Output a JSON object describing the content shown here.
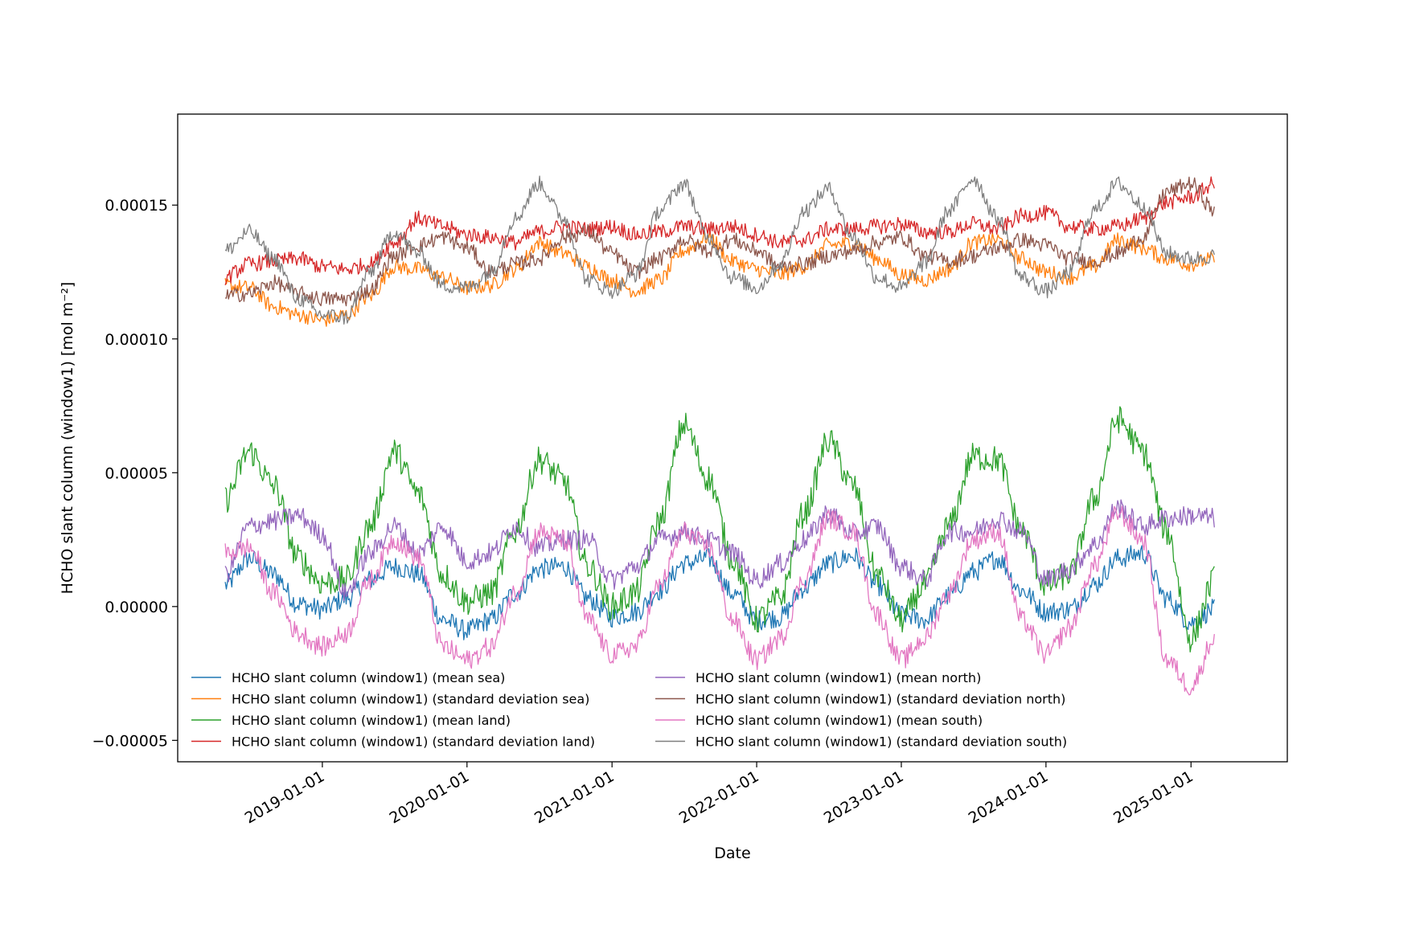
{
  "chart_data": {
    "type": "line",
    "title": "",
    "xlabel": "Date",
    "ylabel": "HCHO slant column (window1) [mol m⁻²]",
    "xlim": [
      "2018-01-01",
      "2025-09-01"
    ],
    "ylim": [
      -5.8e-05,
      0.000184
    ],
    "x_ticks": [
      "2019-01-01",
      "2020-01-01",
      "2021-01-01",
      "2022-01-01",
      "2023-01-01",
      "2024-01-01",
      "2025-01-01"
    ],
    "y_ticks": [
      {
        "value": -5e-05,
        "label": "−0.00005"
      },
      {
        "value": 0.0,
        "label": "0.00000"
      },
      {
        "value": 5e-05,
        "label": "0.00005"
      },
      {
        "value": 0.0001,
        "label": "0.00010"
      },
      {
        "value": 0.00015,
        "label": "0.00015"
      }
    ],
    "grid": false,
    "legend": {
      "placement": "lower-left",
      "columns": 2
    },
    "x": [
      "2018-05-01",
      "2018-07-01",
      "2018-09-01",
      "2018-11-01",
      "2019-01-01",
      "2019-03-01",
      "2019-05-01",
      "2019-07-01",
      "2019-09-01",
      "2019-11-01",
      "2020-01-01",
      "2020-03-01",
      "2020-05-01",
      "2020-07-01",
      "2020-09-01",
      "2020-11-01",
      "2021-01-01",
      "2021-03-01",
      "2021-05-01",
      "2021-07-01",
      "2021-09-01",
      "2021-11-01",
      "2022-01-01",
      "2022-03-01",
      "2022-05-01",
      "2022-07-01",
      "2022-09-01",
      "2022-11-01",
      "2023-01-01",
      "2023-03-01",
      "2023-05-01",
      "2023-07-01",
      "2023-09-01",
      "2023-11-01",
      "2024-01-01",
      "2024-03-01",
      "2024-05-01",
      "2024-07-01",
      "2024-09-01",
      "2024-11-01",
      "2025-01-01",
      "2025-03-01"
    ],
    "series": [
      {
        "name": "HCHO slant column (window1) (mean sea)",
        "color": "#1f77b4",
        "values": [
          8e-06,
          1.8e-05,
          1.2e-05,
          1e-06,
          -1e-06,
          3e-06,
          1e-05,
          1.5e-05,
          1.2e-05,
          -5e-06,
          -9e-06,
          -5e-06,
          5e-06,
          1.4e-05,
          1.5e-05,
          3e-06,
          -4e-06,
          -2e-06,
          6e-06,
          1.6e-05,
          1.8e-05,
          5e-06,
          -5e-06,
          -4e-06,
          7e-06,
          1.6e-05,
          1.9e-05,
          8e-06,
          -3e-06,
          -5e-06,
          4e-06,
          1.3e-05,
          1.8e-05,
          6e-06,
          -2e-06,
          -1e-06,
          8e-06,
          1.8e-05,
          2e-05,
          3e-06,
          -6e-06,
          -1e-06
        ]
      },
      {
        "name": "HCHO slant column (window1) (standard deviation sea)",
        "color": "#ff7f0e",
        "values": [
          0.00012,
          0.000119,
          0.000112,
          0.000109,
          0.000107,
          0.000109,
          0.000116,
          0.000127,
          0.000126,
          0.000123,
          0.000119,
          0.00012,
          0.000126,
          0.000136,
          0.000132,
          0.000127,
          0.000122,
          0.000118,
          0.000122,
          0.000133,
          0.000138,
          0.000129,
          0.000126,
          0.000124,
          0.000127,
          0.000135,
          0.000136,
          0.00013,
          0.000124,
          0.000122,
          0.000126,
          0.000136,
          0.000137,
          0.00013,
          0.000125,
          0.000123,
          0.000127,
          0.000137,
          0.000134,
          0.00013,
          0.000128,
          0.00013
        ]
      },
      {
        "name": "HCHO slant column (window1) (mean land)",
        "color": "#2ca02c",
        "values": [
          4e-05,
          5.8e-05,
          4.5e-05,
          1.8e-05,
          9e-06,
          1e-05,
          3e-05,
          5.8e-05,
          4.2e-05,
          1.2e-05,
          2e-06,
          5e-06,
          2.8e-05,
          5.5e-05,
          4.7e-05,
          1.5e-05,
          0.0,
          5e-06,
          3.2e-05,
          6.8e-05,
          4.8e-05,
          1.8e-05,
          -5e-06,
          3e-06,
          3.5e-05,
          6.2e-05,
          4.5e-05,
          1.2e-05,
          -5e-06,
          8e-06,
          3e-05,
          5.6e-05,
          5.5e-05,
          2.8e-05,
          8e-06,
          1.2e-05,
          4e-05,
          7e-05,
          5.8e-05,
          2.8e-05,
          -1.2e-05,
          1e-05
        ]
      },
      {
        "name": "HCHO slant column (window1) (standard deviation land)",
        "color": "#d62728",
        "values": [
          0.000123,
          0.000128,
          0.000129,
          0.00013,
          0.000127,
          0.000126,
          0.000128,
          0.000136,
          0.000145,
          0.000142,
          0.000139,
          0.000138,
          0.000136,
          0.00014,
          0.000142,
          0.000141,
          0.000142,
          0.000139,
          0.00014,
          0.000142,
          0.000141,
          0.000142,
          0.000139,
          0.000136,
          0.000137,
          0.000141,
          0.000141,
          0.000142,
          0.000143,
          0.00014,
          0.00014,
          0.000143,
          0.000141,
          0.000146,
          0.000147,
          0.000142,
          0.000141,
          0.000142,
          0.000145,
          0.000151,
          0.000153,
          0.000158
        ]
      },
      {
        "name": "HCHO slant column (window1) (mean north)",
        "color": "#9467bd",
        "values": [
          1.2e-05,
          3e-05,
          3.2e-05,
          3.4e-05,
          2.7e-05,
          5e-06,
          2e-05,
          3e-05,
          2e-05,
          3e-05,
          1.7e-05,
          2e-05,
          3e-05,
          2.2e-05,
          2.5e-05,
          2.5e-05,
          1e-05,
          1.5e-05,
          2.5e-05,
          2.8e-05,
          2.5e-05,
          2e-05,
          1e-05,
          1.6e-05,
          2.5e-05,
          3.5e-05,
          2.7e-05,
          3e-05,
          1.5e-05,
          1e-05,
          2.8e-05,
          2.8e-05,
          3.3e-05,
          2.8e-05,
          1e-05,
          1.4e-05,
          2.3e-05,
          3.7e-05,
          3e-05,
          3.3e-05,
          3.4e-05,
          3.3e-05
        ]
      },
      {
        "name": "HCHO slant column (window1) (standard deviation north)",
        "color": "#8c564b",
        "values": [
          0.000116,
          0.000117,
          0.000121,
          0.000117,
          0.000115,
          0.000115,
          0.000118,
          0.000131,
          0.000135,
          0.000138,
          0.000134,
          0.000125,
          0.000128,
          0.00013,
          0.000138,
          0.00014,
          0.000132,
          0.000125,
          0.00013,
          0.000137,
          0.000133,
          0.000137,
          0.000133,
          0.000127,
          0.000128,
          0.000131,
          0.000133,
          0.000136,
          0.000138,
          0.000131,
          0.000129,
          0.000131,
          0.000134,
          0.000137,
          0.000135,
          0.00013,
          0.000129,
          0.000132,
          0.000138,
          0.000155,
          0.000158,
          0.000148
        ]
      },
      {
        "name": "HCHO slant column (window1) (mean south)",
        "color": "#e377c2",
        "values": [
          2e-05,
          2.2e-05,
          5e-06,
          -1e-05,
          -1.5e-05,
          -1e-05,
          1e-05,
          2.5e-05,
          1.8e-05,
          -1.5e-05,
          -2e-05,
          -1.5e-05,
          5e-06,
          2.8e-05,
          2.5e-05,
          -5e-06,
          -1.8e-05,
          -1.5e-05,
          8e-06,
          2.8e-05,
          2.2e-05,
          -5e-06,
          -2e-05,
          -1.2e-05,
          1e-05,
          3.3e-05,
          2.8e-05,
          -3e-06,
          -2e-05,
          -1.2e-05,
          5e-06,
          2.5e-05,
          2.8e-05,
          -5e-06,
          -1.8e-05,
          -8e-06,
          1.5e-05,
          3.5e-05,
          2.5e-05,
          -2e-05,
          -3e-05,
          -1.2e-05
        ]
      },
      {
        "name": "HCHO slant column (window1) (standard deviation south)",
        "color": "#7f7f7f",
        "values": [
          0.000133,
          0.00014,
          0.00013,
          0.000115,
          0.000109,
          0.000108,
          0.000125,
          0.00014,
          0.000132,
          0.00012,
          0.000119,
          0.000125,
          0.000145,
          0.000158,
          0.000145,
          0.000122,
          0.000118,
          0.000124,
          0.000148,
          0.000158,
          0.000138,
          0.000123,
          0.000119,
          0.000128,
          0.000148,
          0.000156,
          0.000138,
          0.000123,
          0.000119,
          0.000128,
          0.000148,
          0.00016,
          0.000145,
          0.000123,
          0.000118,
          0.000125,
          0.000148,
          0.000158,
          0.00015,
          0.000132,
          0.00013,
          0.000131
        ]
      }
    ]
  }
}
